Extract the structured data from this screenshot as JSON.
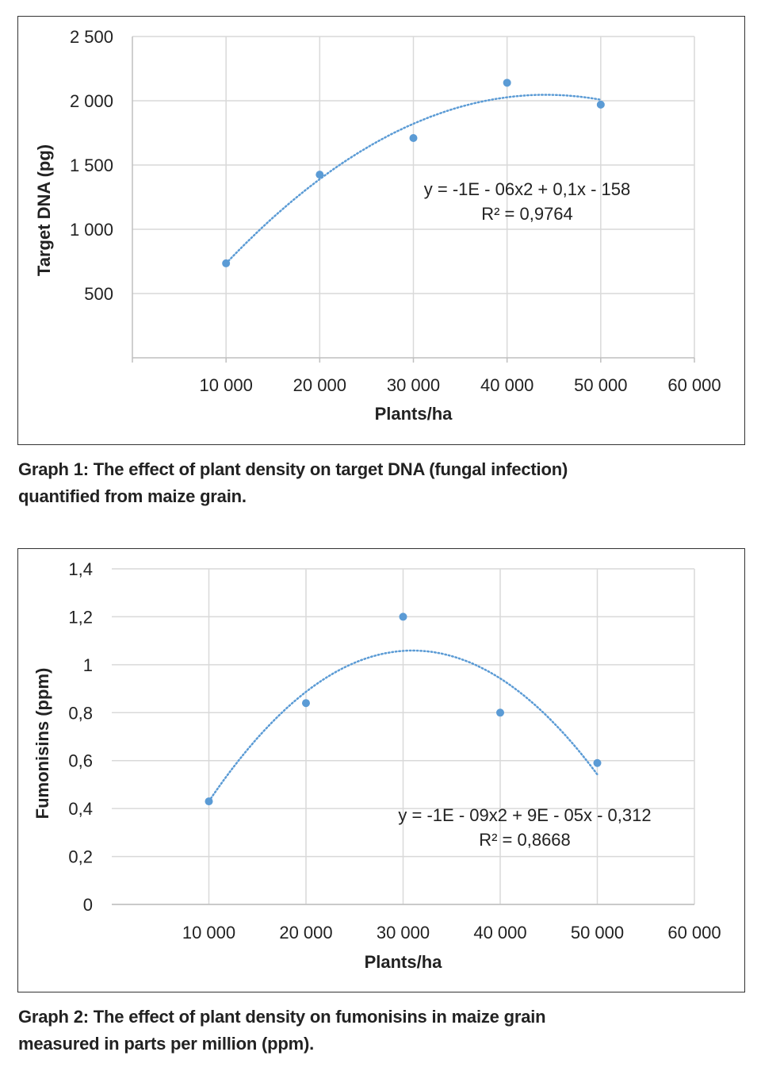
{
  "chart_data": [
    {
      "type": "scatter",
      "title": "",
      "xlabel": "Plants/ha",
      "ylabel": "Target DNA (pg)",
      "xlim": [
        0,
        60000
      ],
      "ylim": [
        0,
        2500
      ],
      "x_ticks": [
        "10 000",
        "20 000",
        "30 000",
        "40 000",
        "50 000",
        "60 000"
      ],
      "y_ticks": [
        "500",
        "1 000",
        "1 500",
        "2 000",
        "2 500"
      ],
      "x": [
        10000,
        20000,
        30000,
        40000,
        50000
      ],
      "y": [
        735,
        1425,
        1710,
        2140,
        1970
      ],
      "trendline": {
        "type": "polynomial-2",
        "style": "dotted",
        "equation": "y = -1E - 06x2 + 0,1x - 158",
        "r2": "R² = 0,9764"
      },
      "grid": true,
      "marker_color": "#5b9bd5"
    },
    {
      "type": "scatter",
      "title": "",
      "xlabel": "Plants/ha",
      "ylabel": "Fumonisins (ppm)",
      "xlim": [
        0,
        60000
      ],
      "ylim": [
        0,
        1.4
      ],
      "x_ticks": [
        "10 000",
        "20 000",
        "30 000",
        "40 000",
        "50 000",
        "60 000"
      ],
      "y_ticks": [
        "0",
        "0,2",
        "0,4",
        "0,6",
        "0,8",
        "1",
        "1,2",
        "1,4"
      ],
      "x": [
        10000,
        20000,
        30000,
        40000,
        50000
      ],
      "y": [
        0.43,
        0.84,
        1.2,
        0.8,
        0.59
      ],
      "trendline": {
        "type": "polynomial-2",
        "style": "dotted",
        "equation": "y = -1E - 09x2 + 9E - 05x - 0,312",
        "r2": "R² = 0,8668"
      },
      "grid": true,
      "marker_color": "#5b9bd5"
    }
  ],
  "captions": [
    {
      "line1": "Graph 1: The effect of plant density on target DNA (fungal infection)",
      "line2": "quantified from maize grain."
    },
    {
      "line1": "Graph 2: The effect of plant density on fumonisins in maize grain",
      "line2": "measured in parts per million (ppm)."
    }
  ]
}
